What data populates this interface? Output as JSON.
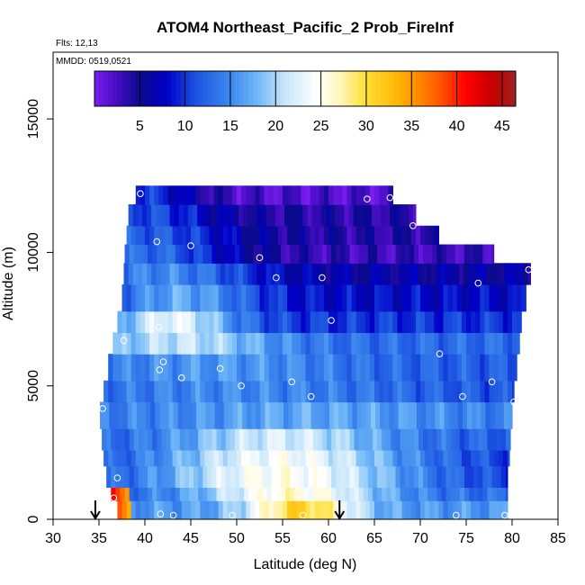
{
  "chart_data": {
    "type": "heatmap",
    "title": "ATOM4 Northeast_Pacific_2 Prob_FireInf",
    "flights_label": "Flts: 12,13",
    "dates_label": "MMDD: 0519,0521",
    "xlabel": "Latitude (deg N)",
    "ylabel": "Altitude (m)",
    "xlim": [
      30,
      85
    ],
    "ylim": [
      0,
      17500
    ],
    "xticks": [
      "30",
      "35",
      "40",
      "45",
      "50",
      "55",
      "60",
      "65",
      "70",
      "75",
      "80",
      "85"
    ],
    "yticks": [
      "0",
      "5000",
      "10000",
      "15000"
    ],
    "colorbar": {
      "range": [
        0,
        46.5
      ],
      "tick_labels": [
        "5",
        "10",
        "15",
        "20",
        "25",
        "30",
        "35",
        "40",
        "45"
      ],
      "stops": [
        [
          0,
          "#7a1cf0"
        ],
        [
          3,
          "#3a0bb8"
        ],
        [
          5,
          "#0a0a8c"
        ],
        [
          8,
          "#0000c8"
        ],
        [
          11,
          "#1a50e0"
        ],
        [
          15,
          "#3d88ee"
        ],
        [
          18,
          "#70b8f8"
        ],
        [
          21,
          "#c8e6fa"
        ],
        [
          24.5,
          "#ffffff"
        ],
        [
          27,
          "#fff7c0"
        ],
        [
          30,
          "#ffe033"
        ],
        [
          34,
          "#ffae00"
        ],
        [
          38,
          "#ff5a00"
        ],
        [
          41,
          "#ff0000"
        ],
        [
          44,
          "#c40000"
        ],
        [
          46.5,
          "#a02020"
        ]
      ]
    },
    "altitude_bands": [
      {
        "alt": [
          0,
          700
        ],
        "lat": [
          37,
          79.5
        ],
        "low": 16,
        "high": 31,
        "center": 57,
        "width": 6
      },
      {
        "alt": [
          700,
          1200
        ],
        "lat": [
          36.3,
          79.5
        ],
        "low": 13,
        "high": 26,
        "center": 56,
        "width": 10
      },
      {
        "alt": [
          1200,
          2000
        ],
        "lat": [
          35.8,
          79.5
        ],
        "low": 10,
        "high": 25,
        "center": 55,
        "width": 14
      },
      {
        "alt": [
          2000,
          2600
        ],
        "lat": [
          35.5,
          79.7
        ],
        "low": 10,
        "high": 24,
        "center": 55,
        "width": 14
      },
      {
        "alt": [
          2600,
          3400
        ],
        "lat": [
          35.3,
          79.8
        ],
        "low": 12,
        "high": 22,
        "center": 55,
        "width": 12
      },
      {
        "alt": [
          3400,
          4400
        ],
        "lat": [
          35.1,
          80
        ],
        "low": 14,
        "high": 17,
        "center": 58,
        "width": 15
      },
      {
        "alt": [
          4400,
          5200
        ],
        "lat": [
          35.5,
          80.2
        ],
        "low": 11,
        "high": 15,
        "center": 50,
        "width": 20
      },
      {
        "alt": [
          5200,
          6200
        ],
        "lat": [
          36,
          80.5
        ],
        "low": 12,
        "high": 16,
        "center": 48,
        "width": 15
      },
      {
        "alt": [
          6200,
          7000
        ],
        "lat": [
          36.5,
          80.8
        ],
        "low": 13,
        "high": 21,
        "center": 44,
        "width": 10
      },
      {
        "alt": [
          7000,
          7800
        ],
        "lat": [
          37,
          81
        ],
        "low": 10,
        "high": 23,
        "center": 43,
        "width": 7
      },
      {
        "alt": [
          7800,
          8800
        ],
        "lat": [
          37.5,
          81.5
        ],
        "low": 8,
        "high": 17,
        "center": 44,
        "width": 8
      },
      {
        "alt": [
          8800,
          9600
        ],
        "lat": [
          37.7,
          82
        ],
        "low": 6,
        "high": 15,
        "center": 42,
        "width": 10
      },
      {
        "alt": [
          9600,
          10300
        ],
        "lat": [
          37.8,
          78
        ],
        "low": 3,
        "high": 13,
        "center": 40,
        "width": 10
      },
      {
        "alt": [
          10300,
          11000
        ],
        "lat": [
          38,
          72
        ],
        "low": 4,
        "high": 12,
        "center": 40,
        "width": 10
      },
      {
        "alt": [
          11000,
          11800
        ],
        "lat": [
          38.2,
          69.5
        ],
        "low": 4,
        "high": 11,
        "center": 40,
        "width": 8
      },
      {
        "alt": [
          11800,
          12500
        ],
        "lat": [
          39,
          67
        ],
        "low": 2,
        "high": 10,
        "center": 40,
        "width": 6
      }
    ],
    "hotspot": {
      "alt": [
        400,
        1100
      ],
      "lat": [
        36.3,
        38.5
      ],
      "value": 42
    },
    "sample_points": [
      [
        39.5,
        12200
      ],
      [
        41.3,
        10400
      ],
      [
        45,
        10250
      ],
      [
        52.5,
        9800
      ],
      [
        54.3,
        9050
      ],
      [
        59.3,
        9050
      ],
      [
        64.2,
        12000
      ],
      [
        66.7,
        12050
      ],
      [
        69.2,
        11000
      ],
      [
        76.3,
        8850
      ],
      [
        81.8,
        9350
      ],
      [
        60.3,
        7450
      ],
      [
        37.7,
        6700
      ],
      [
        41.5,
        7200
      ],
      [
        42,
        5900
      ],
      [
        41.6,
        5600
      ],
      [
        48.2,
        5650
      ],
      [
        44,
        5300
      ],
      [
        50.5,
        5000
      ],
      [
        56,
        5150
      ],
      [
        58.1,
        4600
      ],
      [
        72.1,
        6200
      ],
      [
        77.8,
        5150
      ],
      [
        74.6,
        4600
      ],
      [
        80.2,
        4400
      ],
      [
        35.4,
        4150
      ],
      [
        37,
        1550
      ],
      [
        36.6,
        800
      ],
      [
        41.7,
        200
      ],
      [
        43.1,
        150
      ],
      [
        49.5,
        150
      ],
      [
        52.4,
        150
      ],
      [
        57.2,
        150
      ],
      [
        73.9,
        150
      ],
      [
        79.2,
        150
      ]
    ],
    "arrows_lat": [
      34.6,
      61.2
    ]
  }
}
